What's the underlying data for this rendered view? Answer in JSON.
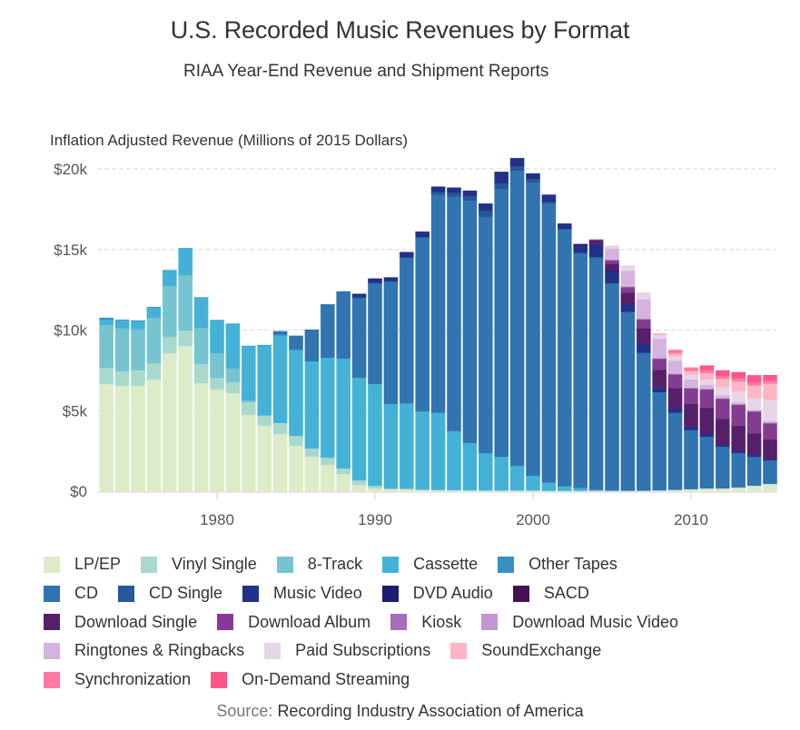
{
  "chart_data": {
    "type": "bar",
    "stacked": true,
    "title": "U.S. Recorded Music Revenues by Format",
    "subtitle": "RIAA Year-End Revenue and Shipment Reports",
    "ylabel": "Inflation Adjusted Revenue (Millions of 2015 Dollars)",
    "xlabel": "",
    "ylim": [
      0,
      20500
    ],
    "yticks": [
      {
        "value": 0,
        "label": "$0"
      },
      {
        "value": 5000,
        "label": "$5k"
      },
      {
        "value": 10000,
        "label": "$10k"
      },
      {
        "value": 15000,
        "label": "$15k"
      },
      {
        "value": 20000,
        "label": "$20k"
      }
    ],
    "xlim": [
      1972.5,
      2015.5
    ],
    "xticks": [
      {
        "value": 1980,
        "label": "1980"
      },
      {
        "value": 1990,
        "label": "1990"
      },
      {
        "value": 2000,
        "label": "2000"
      },
      {
        "value": 2010,
        "label": "2010"
      }
    ],
    "grid": true,
    "legend_position": "bottom",
    "source_label": "Source:",
    "source_text": "Recording Industry Association of America",
    "x": [
      1973,
      1974,
      1975,
      1976,
      1977,
      1978,
      1979,
      1980,
      1981,
      1982,
      1983,
      1984,
      1985,
      1986,
      1987,
      1988,
      1989,
      1990,
      1991,
      1992,
      1993,
      1994,
      1995,
      1996,
      1997,
      1998,
      1999,
      2000,
      2001,
      2002,
      2003,
      2004,
      2005,
      2006,
      2007,
      2008,
      2009,
      2010,
      2011,
      2012,
      2013,
      2014,
      2015
    ],
    "series": [
      {
        "name": "LP/EP",
        "color": "#dcebc8",
        "values": [
          6650,
          6540,
          6540,
          6930,
          8560,
          9010,
          6700,
          6310,
          6080,
          4730,
          4060,
          3550,
          2820,
          2140,
          1630,
          1070,
          390,
          170,
          100,
          100,
          60,
          50,
          40,
          30,
          30,
          30,
          30,
          30,
          20,
          20,
          20,
          20,
          20,
          20,
          30,
          50,
          80,
          120,
          170,
          170,
          230,
          340,
          450
        ]
      },
      {
        "name": "Vinyl Single",
        "color": "#a8d9cc",
        "values": [
          1010,
          900,
          960,
          1010,
          1010,
          960,
          1180,
          730,
          680,
          790,
          620,
          680,
          620,
          510,
          450,
          340,
          280,
          170,
          70,
          50,
          40,
          30,
          30,
          30,
          20,
          20,
          20,
          20,
          10,
          10,
          10,
          10,
          10,
          10,
          0,
          0,
          0,
          0,
          0,
          0,
          0,
          0,
          0
        ]
      },
      {
        "name": "8-Track",
        "color": "#76c4d0",
        "values": [
          2650,
          2650,
          2540,
          2820,
          3150,
          3440,
          2250,
          1520,
          850,
          100,
          30,
          0,
          0,
          0,
          0,
          0,
          0,
          0,
          0,
          0,
          0,
          0,
          0,
          0,
          0,
          0,
          0,
          0,
          0,
          0,
          0,
          0,
          0,
          0,
          0,
          0,
          0,
          0,
          0,
          0,
          0,
          0,
          0
        ]
      },
      {
        "name": "Cassette",
        "color": "#43b2d6",
        "values": [
          340,
          500,
          500,
          620,
          960,
          1630,
          1860,
          2030,
          2760,
          3380,
          4340,
          5460,
          5350,
          5410,
          6200,
          6820,
          6370,
          6310,
          5240,
          5300,
          4850,
          4790,
          3660,
          2930,
          2310,
          2080,
          1520,
          900,
          510,
          280,
          170,
          60,
          20,
          0,
          0,
          0,
          0,
          0,
          0,
          0,
          0,
          0,
          0
        ]
      },
      {
        "name": "Other Tapes",
        "color": "#3691c1",
        "values": [
          110,
          50,
          50,
          50,
          40,
          40,
          40,
          30,
          30,
          20,
          20,
          10,
          10,
          0,
          0,
          0,
          0,
          0,
          0,
          0,
          0,
          0,
          0,
          0,
          0,
          0,
          0,
          0,
          0,
          0,
          0,
          0,
          0,
          0,
          0,
          0,
          0,
          0,
          0,
          0,
          0,
          0,
          0
        ]
      },
      {
        "name": "CD",
        "color": "#3074b0",
        "values": [
          0,
          0,
          0,
          0,
          0,
          0,
          0,
          0,
          0,
          0,
          0,
          230,
          850,
          1970,
          3320,
          4170,
          4960,
          6250,
          7610,
          9010,
          10760,
          13520,
          14540,
          15040,
          14650,
          16620,
          18310,
          18200,
          17300,
          15940,
          14590,
          14420,
          12850,
          11100,
          8560,
          6080,
          4790,
          3660,
          3210,
          2590,
          2140,
          1800,
          1460
        ]
      },
      {
        "name": "CD Single",
        "color": "#27569b",
        "values": [
          0,
          0,
          0,
          0,
          0,
          0,
          0,
          0,
          0,
          0,
          0,
          0,
          0,
          0,
          0,
          0,
          20,
          20,
          20,
          40,
          60,
          170,
          230,
          280,
          390,
          340,
          280,
          230,
          110,
          20,
          10,
          0,
          0,
          0,
          0,
          0,
          0,
          0,
          0,
          0,
          0,
          0,
          0
        ]
      },
      {
        "name": "Music Video",
        "color": "#21318a",
        "values": [
          0,
          0,
          0,
          0,
          0,
          0,
          0,
          0,
          0,
          0,
          0,
          0,
          0,
          0,
          0,
          0,
          230,
          280,
          230,
          340,
          340,
          340,
          340,
          340,
          450,
          730,
          510,
          340,
          450,
          340,
          510,
          790,
          790,
          510,
          560,
          280,
          230,
          230,
          170,
          110,
          110,
          110,
          60
        ]
      },
      {
        "name": "DVD Audio",
        "color": "#1a1f6e",
        "values": [
          0,
          0,
          0,
          0,
          0,
          0,
          0,
          0,
          0,
          0,
          0,
          0,
          0,
          0,
          0,
          0,
          0,
          0,
          0,
          0,
          0,
          0,
          0,
          0,
          0,
          0,
          0,
          0,
          0,
          0,
          10,
          10,
          10,
          0,
          0,
          0,
          0,
          0,
          0,
          0,
          0,
          0,
          0
        ]
      },
      {
        "name": "SACD",
        "color": "#461153",
        "values": [
          0,
          0,
          0,
          0,
          0,
          0,
          0,
          0,
          0,
          0,
          0,
          0,
          0,
          0,
          0,
          0,
          0,
          0,
          0,
          0,
          0,
          0,
          0,
          0,
          0,
          0,
          0,
          0,
          0,
          0,
          20,
          30,
          20,
          10,
          0,
          0,
          0,
          0,
          0,
          0,
          0,
          0,
          0
        ]
      },
      {
        "name": "Download Single",
        "color": "#561f6a",
        "values": [
          0,
          0,
          0,
          0,
          0,
          0,
          0,
          0,
          0,
          0,
          0,
          0,
          0,
          0,
          0,
          0,
          0,
          0,
          0,
          0,
          0,
          0,
          0,
          0,
          0,
          0,
          0,
          0,
          0,
          0,
          0,
          230,
          390,
          680,
          960,
          1130,
          1300,
          1410,
          1630,
          1630,
          1580,
          1350,
          1240
        ]
      },
      {
        "name": "Download Album",
        "color": "#843c93",
        "values": [
          0,
          0,
          0,
          0,
          0,
          0,
          0,
          0,
          0,
          0,
          0,
          0,
          0,
          0,
          0,
          0,
          0,
          0,
          0,
          0,
          0,
          0,
          0,
          0,
          0,
          0,
          0,
          0,
          0,
          0,
          0,
          50,
          230,
          340,
          560,
          680,
          850,
          960,
          1130,
          1240,
          1300,
          1350,
          1010
        ]
      },
      {
        "name": "Kiosk",
        "color": "#a86cb8",
        "values": [
          0,
          0,
          0,
          0,
          0,
          0,
          0,
          0,
          0,
          0,
          0,
          0,
          0,
          0,
          0,
          0,
          0,
          0,
          0,
          0,
          0,
          0,
          0,
          0,
          0,
          0,
          0,
          0,
          0,
          0,
          0,
          0,
          10,
          10,
          10,
          20,
          20,
          20,
          20,
          20,
          20,
          20,
          20
        ]
      },
      {
        "name": "Download Music Video",
        "color": "#c496d1",
        "values": [
          0,
          0,
          0,
          0,
          0,
          0,
          0,
          0,
          0,
          0,
          0,
          0,
          0,
          0,
          0,
          0,
          0,
          0,
          0,
          0,
          0,
          0,
          0,
          0,
          0,
          0,
          0,
          0,
          0,
          0,
          0,
          0,
          20,
          30,
          40,
          30,
          30,
          30,
          30,
          20,
          20,
          10,
          10
        ]
      },
      {
        "name": "Ringtones & Ringbacks",
        "color": "#d4b3dc",
        "values": [
          0,
          0,
          0,
          0,
          0,
          0,
          0,
          0,
          0,
          0,
          0,
          0,
          0,
          0,
          0,
          0,
          0,
          0,
          0,
          0,
          0,
          0,
          0,
          0,
          0,
          0,
          0,
          0,
          0,
          0,
          0,
          0,
          680,
          960,
          1180,
          1180,
          790,
          510,
          230,
          170,
          110,
          60,
          110
        ]
      },
      {
        "name": "Paid Subscriptions",
        "color": "#e6d5e8",
        "values": [
          0,
          0,
          0,
          0,
          0,
          0,
          0,
          0,
          0,
          0,
          0,
          0,
          0,
          0,
          0,
          0,
          0,
          0,
          0,
          0,
          0,
          0,
          0,
          0,
          0,
          0,
          0,
          0,
          0,
          0,
          0,
          0,
          150,
          280,
          340,
          230,
          280,
          280,
          340,
          510,
          680,
          730,
          1300
        ]
      },
      {
        "name": "SoundExchange",
        "color": "#ffb6c4",
        "values": [
          0,
          0,
          0,
          0,
          0,
          0,
          0,
          0,
          0,
          0,
          0,
          0,
          0,
          0,
          0,
          0,
          0,
          0,
          0,
          0,
          0,
          0,
          0,
          0,
          0,
          0,
          0,
          0,
          0,
          0,
          0,
          0,
          20,
          40,
          60,
          110,
          170,
          230,
          390,
          510,
          620,
          790,
          1010
        ]
      },
      {
        "name": "Synchronization",
        "color": "#ff7aa3",
        "values": [
          0,
          0,
          0,
          0,
          0,
          0,
          0,
          0,
          0,
          0,
          0,
          0,
          0,
          0,
          0,
          0,
          0,
          0,
          0,
          0,
          0,
          0,
          0,
          0,
          0,
          0,
          0,
          0,
          0,
          0,
          0,
          0,
          0,
          0,
          0,
          0,
          230,
          230,
          200,
          190,
          190,
          190,
          200
        ]
      },
      {
        "name": "On-Demand Streaming",
        "color": "#ff5588",
        "values": [
          0,
          0,
          0,
          0,
          0,
          0,
          0,
          0,
          0,
          0,
          0,
          0,
          0,
          0,
          0,
          0,
          0,
          0,
          0,
          0,
          0,
          0,
          0,
          0,
          0,
          0,
          0,
          0,
          0,
          0,
          0,
          0,
          0,
          0,
          0,
          0,
          0,
          0,
          280,
          340,
          390,
          450,
          340
        ]
      }
    ]
  },
  "header": {
    "title": "U.S. Recorded Music Revenues by Format",
    "subtitle": "RIAA Year-End Revenue and Shipment Reports",
    "ylabel": "Inflation Adjusted Revenue (Millions of 2015 Dollars)"
  },
  "footer": {
    "source_label": "Source:",
    "source_text": "Recording Industry Association of America"
  },
  "legend_rows": [
    [
      0,
      1,
      2,
      3,
      4
    ],
    [
      5,
      6,
      7,
      8,
      9
    ],
    [
      10,
      11,
      12,
      13
    ],
    [
      14,
      15,
      16
    ],
    [
      17,
      18
    ]
  ]
}
